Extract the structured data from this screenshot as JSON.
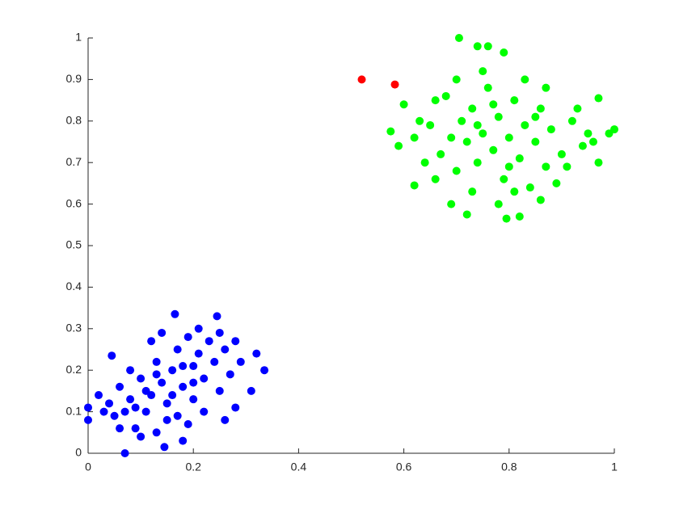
{
  "chart_data": {
    "type": "scatter",
    "xlim": [
      0,
      1
    ],
    "ylim": [
      0,
      1
    ],
    "xticks": [
      0,
      0.2,
      0.4,
      0.6,
      0.8,
      1
    ],
    "yticks": [
      0,
      0.1,
      0.2,
      0.3,
      0.4,
      0.5,
      0.6,
      0.7,
      0.8,
      0.9,
      1
    ],
    "grid": false,
    "series": [
      {
        "color": "#0000ff",
        "x": [
          0.07,
          0.165,
          0.245,
          0.335,
          0.32,
          0.0,
          0.0,
          0.045,
          0.145,
          0.18,
          0.28,
          0.31,
          0.02,
          0.04,
          0.05,
          0.06,
          0.08,
          0.09,
          0.1,
          0.11,
          0.12,
          0.13,
          0.13,
          0.14,
          0.15,
          0.16,
          0.17,
          0.17,
          0.18,
          0.19,
          0.2,
          0.2,
          0.21,
          0.22,
          0.23,
          0.24,
          0.25,
          0.26,
          0.27,
          0.29,
          0.1,
          0.08,
          0.12,
          0.06,
          0.15,
          0.19,
          0.22,
          0.25,
          0.14,
          0.03,
          0.16,
          0.18,
          0.11,
          0.09,
          0.21,
          0.28,
          0.26,
          0.07,
          0.13,
          0.2
        ],
        "values": [
          0.0,
          0.335,
          0.33,
          0.2,
          0.24,
          0.11,
          0.08,
          0.235,
          0.015,
          0.03,
          0.11,
          0.15,
          0.14,
          0.12,
          0.09,
          0.16,
          0.13,
          0.06,
          0.18,
          0.1,
          0.14,
          0.22,
          0.05,
          0.17,
          0.12,
          0.2,
          0.25,
          0.09,
          0.16,
          0.28,
          0.21,
          0.13,
          0.24,
          0.18,
          0.27,
          0.22,
          0.15,
          0.25,
          0.19,
          0.22,
          0.04,
          0.2,
          0.27,
          0.06,
          0.08,
          0.07,
          0.1,
          0.29,
          0.29,
          0.1,
          0.14,
          0.21,
          0.15,
          0.11,
          0.3,
          0.27,
          0.08,
          0.1,
          0.19,
          0.17
        ]
      },
      {
        "color": "#00ff00",
        "x": [
          0.705,
          0.74,
          0.76,
          0.79,
          1.0,
          0.99,
          0.97,
          0.795,
          0.82,
          0.72,
          0.575,
          0.59,
          0.6,
          0.62,
          0.97,
          0.65,
          0.67,
          0.68,
          0.7,
          0.71,
          0.72,
          0.73,
          0.74,
          0.75,
          0.76,
          0.77,
          0.78,
          0.79,
          0.8,
          0.81,
          0.82,
          0.83,
          0.84,
          0.85,
          0.86,
          0.87,
          0.88,
          0.9,
          0.92,
          0.94,
          0.66,
          0.64,
          0.69,
          0.73,
          0.78,
          0.86,
          0.89,
          0.91,
          0.93,
          0.95,
          0.63,
          0.62,
          0.7,
          0.75,
          0.83,
          0.87,
          0.77,
          0.8,
          0.74,
          0.85,
          0.69,
          0.81,
          0.66,
          0.96
        ],
        "values": [
          1.0,
          0.98,
          0.98,
          0.965,
          0.78,
          0.77,
          0.855,
          0.565,
          0.57,
          0.575,
          0.775,
          0.74,
          0.84,
          0.645,
          0.7,
          0.79,
          0.72,
          0.86,
          0.68,
          0.8,
          0.75,
          0.83,
          0.7,
          0.77,
          0.88,
          0.73,
          0.81,
          0.66,
          0.76,
          0.85,
          0.71,
          0.79,
          0.64,
          0.75,
          0.83,
          0.69,
          0.78,
          0.72,
          0.8,
          0.74,
          0.66,
          0.7,
          0.6,
          0.63,
          0.6,
          0.61,
          0.65,
          0.69,
          0.83,
          0.77,
          0.8,
          0.76,
          0.9,
          0.92,
          0.9,
          0.88,
          0.84,
          0.69,
          0.79,
          0.81,
          0.76,
          0.63,
          0.85,
          0.75
        ]
      },
      {
        "color": "#ff0000",
        "x": [
          0.52,
          0.583
        ],
        "values": [
          0.9,
          0.888
        ]
      }
    ]
  }
}
